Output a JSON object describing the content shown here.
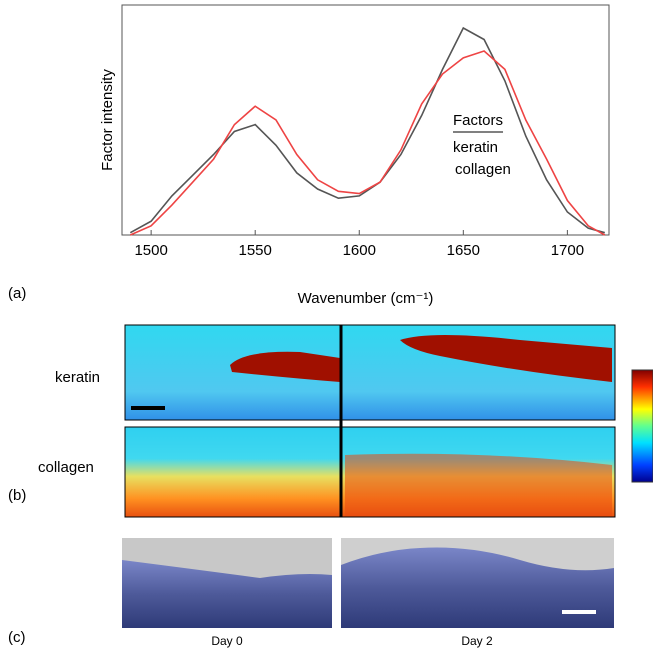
{
  "chart_data": {
    "type": "line",
    "y_label": "Factor intensity",
    "x_label": "Wavenumber (cm⁻¹)",
    "x": [
      1490,
      1500,
      1510,
      1520,
      1530,
      1540,
      1550,
      1560,
      1570,
      1580,
      1590,
      1600,
      1610,
      1620,
      1630,
      1640,
      1650,
      1660,
      1670,
      1680,
      1690,
      1700,
      1710,
      1718
    ],
    "xlim": [
      1486,
      1720
    ],
    "xticks": [
      1500,
      1550,
      1600,
      1650,
      1700
    ],
    "ylim": [
      0,
      1
    ],
    "legend_title": "Factors",
    "series": [
      {
        "name": "keratin",
        "color": "#555555",
        "values": [
          0.01,
          0.06,
          0.17,
          0.26,
          0.35,
          0.45,
          0.48,
          0.39,
          0.27,
          0.2,
          0.16,
          0.17,
          0.23,
          0.35,
          0.52,
          0.72,
          0.9,
          0.85,
          0.67,
          0.43,
          0.24,
          0.1,
          0.03,
          0.01
        ]
      },
      {
        "name": "collagen",
        "color": "#ee4444",
        "values": [
          0.0,
          0.04,
          0.13,
          0.23,
          0.33,
          0.48,
          0.56,
          0.5,
          0.35,
          0.24,
          0.19,
          0.18,
          0.23,
          0.37,
          0.57,
          0.7,
          0.77,
          0.8,
          0.72,
          0.5,
          0.33,
          0.15,
          0.04,
          0.0
        ]
      }
    ]
  },
  "panel_labels": [
    "(a)",
    "(b)",
    "(c)"
  ],
  "maps": {
    "rows": [
      "keratin",
      "collagen"
    ]
  },
  "images": {
    "captions": [
      "Day 0",
      "Day 2"
    ]
  }
}
